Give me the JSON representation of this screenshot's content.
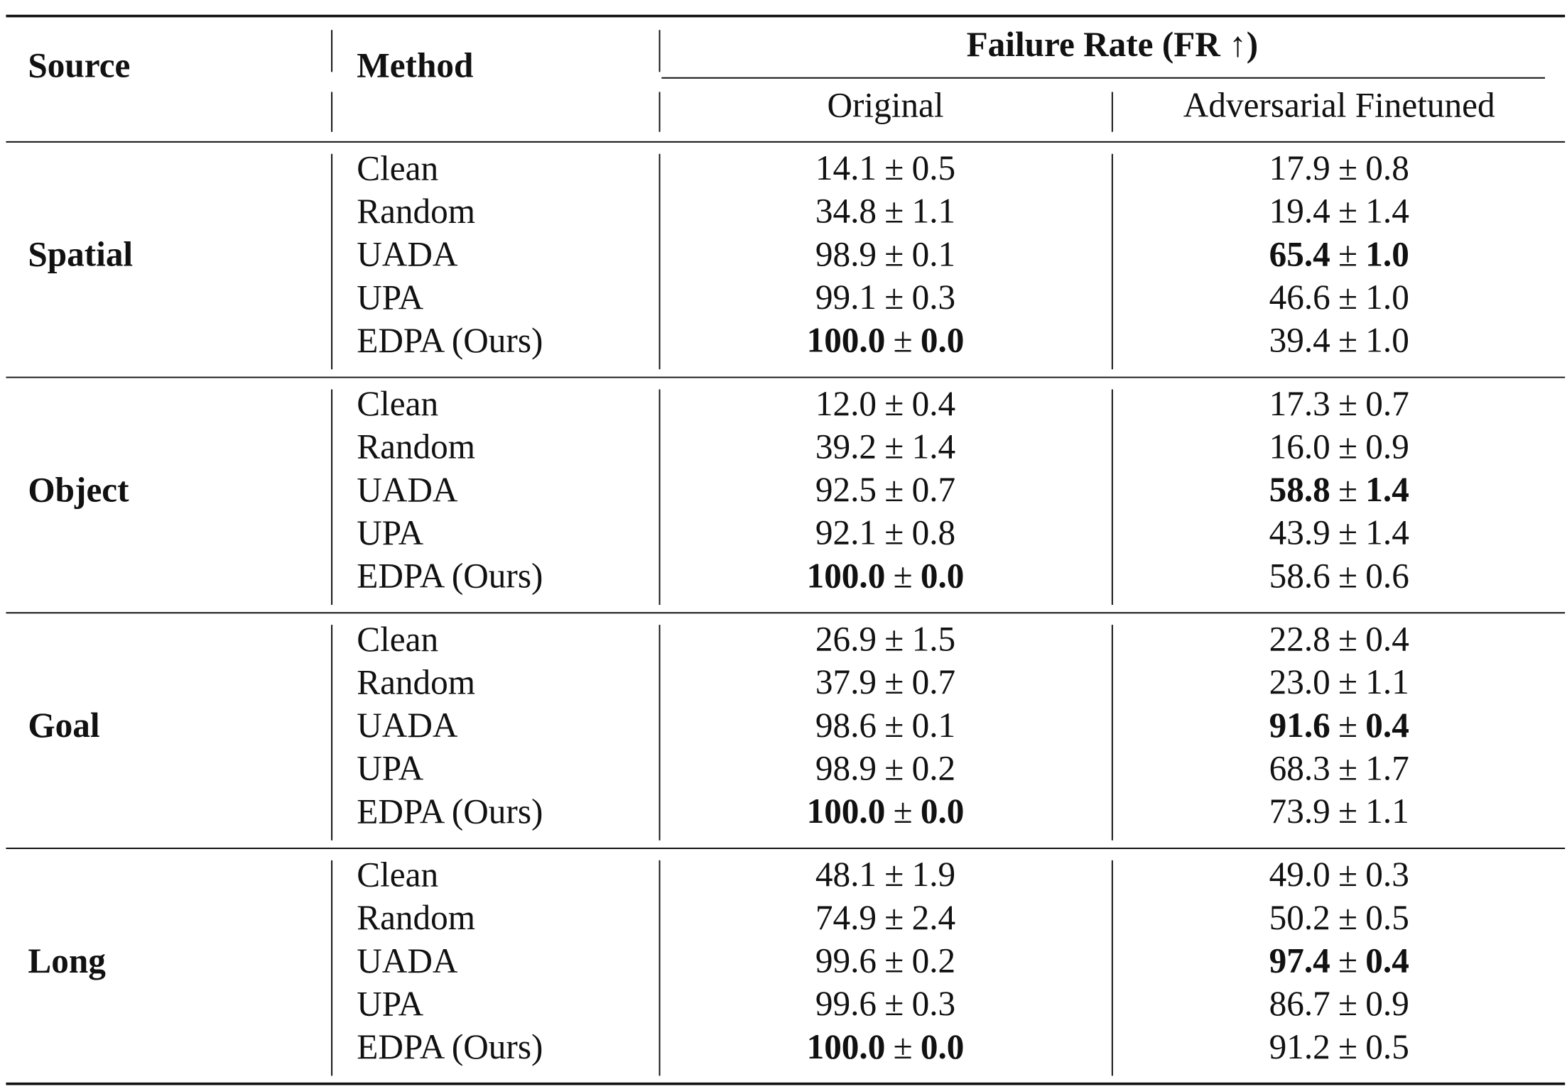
{
  "table": {
    "header": {
      "source": "Source",
      "method": "Method",
      "group": "Failure Rate (FR ↑)",
      "columns": [
        "Original",
        "Adversarial Finetuned"
      ]
    },
    "plus_minus": "±",
    "groups": [
      {
        "source": "Spatial",
        "rows": [
          {
            "method": "Clean",
            "cells": [
              {
                "mean": "14.1",
                "sd": "0.5",
                "bold": false
              },
              {
                "mean": "17.9",
                "sd": "0.8",
                "bold": false
              }
            ]
          },
          {
            "method": "Random",
            "cells": [
              {
                "mean": "34.8",
                "sd": "1.1",
                "bold": false
              },
              {
                "mean": "19.4",
                "sd": "1.4",
                "bold": false
              }
            ]
          },
          {
            "method": "UADA",
            "cells": [
              {
                "mean": "98.9",
                "sd": "0.1",
                "bold": false
              },
              {
                "mean": "65.4",
                "sd": "1.0",
                "bold": true
              }
            ]
          },
          {
            "method": "UPA",
            "cells": [
              {
                "mean": "99.1",
                "sd": "0.3",
                "bold": false
              },
              {
                "mean": "46.6",
                "sd": "1.0",
                "bold": false
              }
            ]
          },
          {
            "method": "EDPA (Ours)",
            "cells": [
              {
                "mean": "100.0",
                "sd": "0.0",
                "bold": true
              },
              {
                "mean": "39.4",
                "sd": "1.0",
                "bold": false
              }
            ]
          }
        ]
      },
      {
        "source": "Object",
        "rows": [
          {
            "method": "Clean",
            "cells": [
              {
                "mean": "12.0",
                "sd": "0.4",
                "bold": false
              },
              {
                "mean": "17.3",
                "sd": "0.7",
                "bold": false
              }
            ]
          },
          {
            "method": "Random",
            "cells": [
              {
                "mean": "39.2",
                "sd": "1.4",
                "bold": false
              },
              {
                "mean": "16.0",
                "sd": "0.9",
                "bold": false
              }
            ]
          },
          {
            "method": "UADA",
            "cells": [
              {
                "mean": "92.5",
                "sd": "0.7",
                "bold": false
              },
              {
                "mean": "58.8",
                "sd": "1.4",
                "bold": true
              }
            ]
          },
          {
            "method": "UPA",
            "cells": [
              {
                "mean": "92.1",
                "sd": "0.8",
                "bold": false
              },
              {
                "mean": "43.9",
                "sd": "1.4",
                "bold": false
              }
            ]
          },
          {
            "method": "EDPA (Ours)",
            "cells": [
              {
                "mean": "100.0",
                "sd": "0.0",
                "bold": true
              },
              {
                "mean": "58.6",
                "sd": "0.6",
                "bold": false
              }
            ]
          }
        ]
      },
      {
        "source": "Goal",
        "rows": [
          {
            "method": "Clean",
            "cells": [
              {
                "mean": "26.9",
                "sd": "1.5",
                "bold": false
              },
              {
                "mean": "22.8",
                "sd": "0.4",
                "bold": false
              }
            ]
          },
          {
            "method": "Random",
            "cells": [
              {
                "mean": "37.9",
                "sd": "0.7",
                "bold": false
              },
              {
                "mean": "23.0",
                "sd": "1.1",
                "bold": false
              }
            ]
          },
          {
            "method": "UADA",
            "cells": [
              {
                "mean": "98.6",
                "sd": "0.1",
                "bold": false
              },
              {
                "mean": "91.6",
                "sd": "0.4",
                "bold": true
              }
            ]
          },
          {
            "method": "UPA",
            "cells": [
              {
                "mean": "98.9",
                "sd": "0.2",
                "bold": false
              },
              {
                "mean": "68.3",
                "sd": "1.7",
                "bold": false
              }
            ]
          },
          {
            "method": "EDPA (Ours)",
            "cells": [
              {
                "mean": "100.0",
                "sd": "0.0",
                "bold": true
              },
              {
                "mean": "73.9",
                "sd": "1.1",
                "bold": false
              }
            ]
          }
        ]
      },
      {
        "source": "Long",
        "rows": [
          {
            "method": "Clean",
            "cells": [
              {
                "mean": "48.1",
                "sd": "1.9",
                "bold": false
              },
              {
                "mean": "49.0",
                "sd": "0.3",
                "bold": false
              }
            ]
          },
          {
            "method": "Random",
            "cells": [
              {
                "mean": "74.9",
                "sd": "2.4",
                "bold": false
              },
              {
                "mean": "50.2",
                "sd": "0.5",
                "bold": false
              }
            ]
          },
          {
            "method": "UADA",
            "cells": [
              {
                "mean": "99.6",
                "sd": "0.2",
                "bold": false
              },
              {
                "mean": "97.4",
                "sd": "0.4",
                "bold": true
              }
            ]
          },
          {
            "method": "UPA",
            "cells": [
              {
                "mean": "99.6",
                "sd": "0.3",
                "bold": false
              },
              {
                "mean": "86.7",
                "sd": "0.9",
                "bold": false
              }
            ]
          },
          {
            "method": "EDPA (Ours)",
            "cells": [
              {
                "mean": "100.0",
                "sd": "0.0",
                "bold": true
              },
              {
                "mean": "91.2",
                "sd": "0.5",
                "bold": false
              }
            ]
          }
        ]
      }
    ]
  }
}
